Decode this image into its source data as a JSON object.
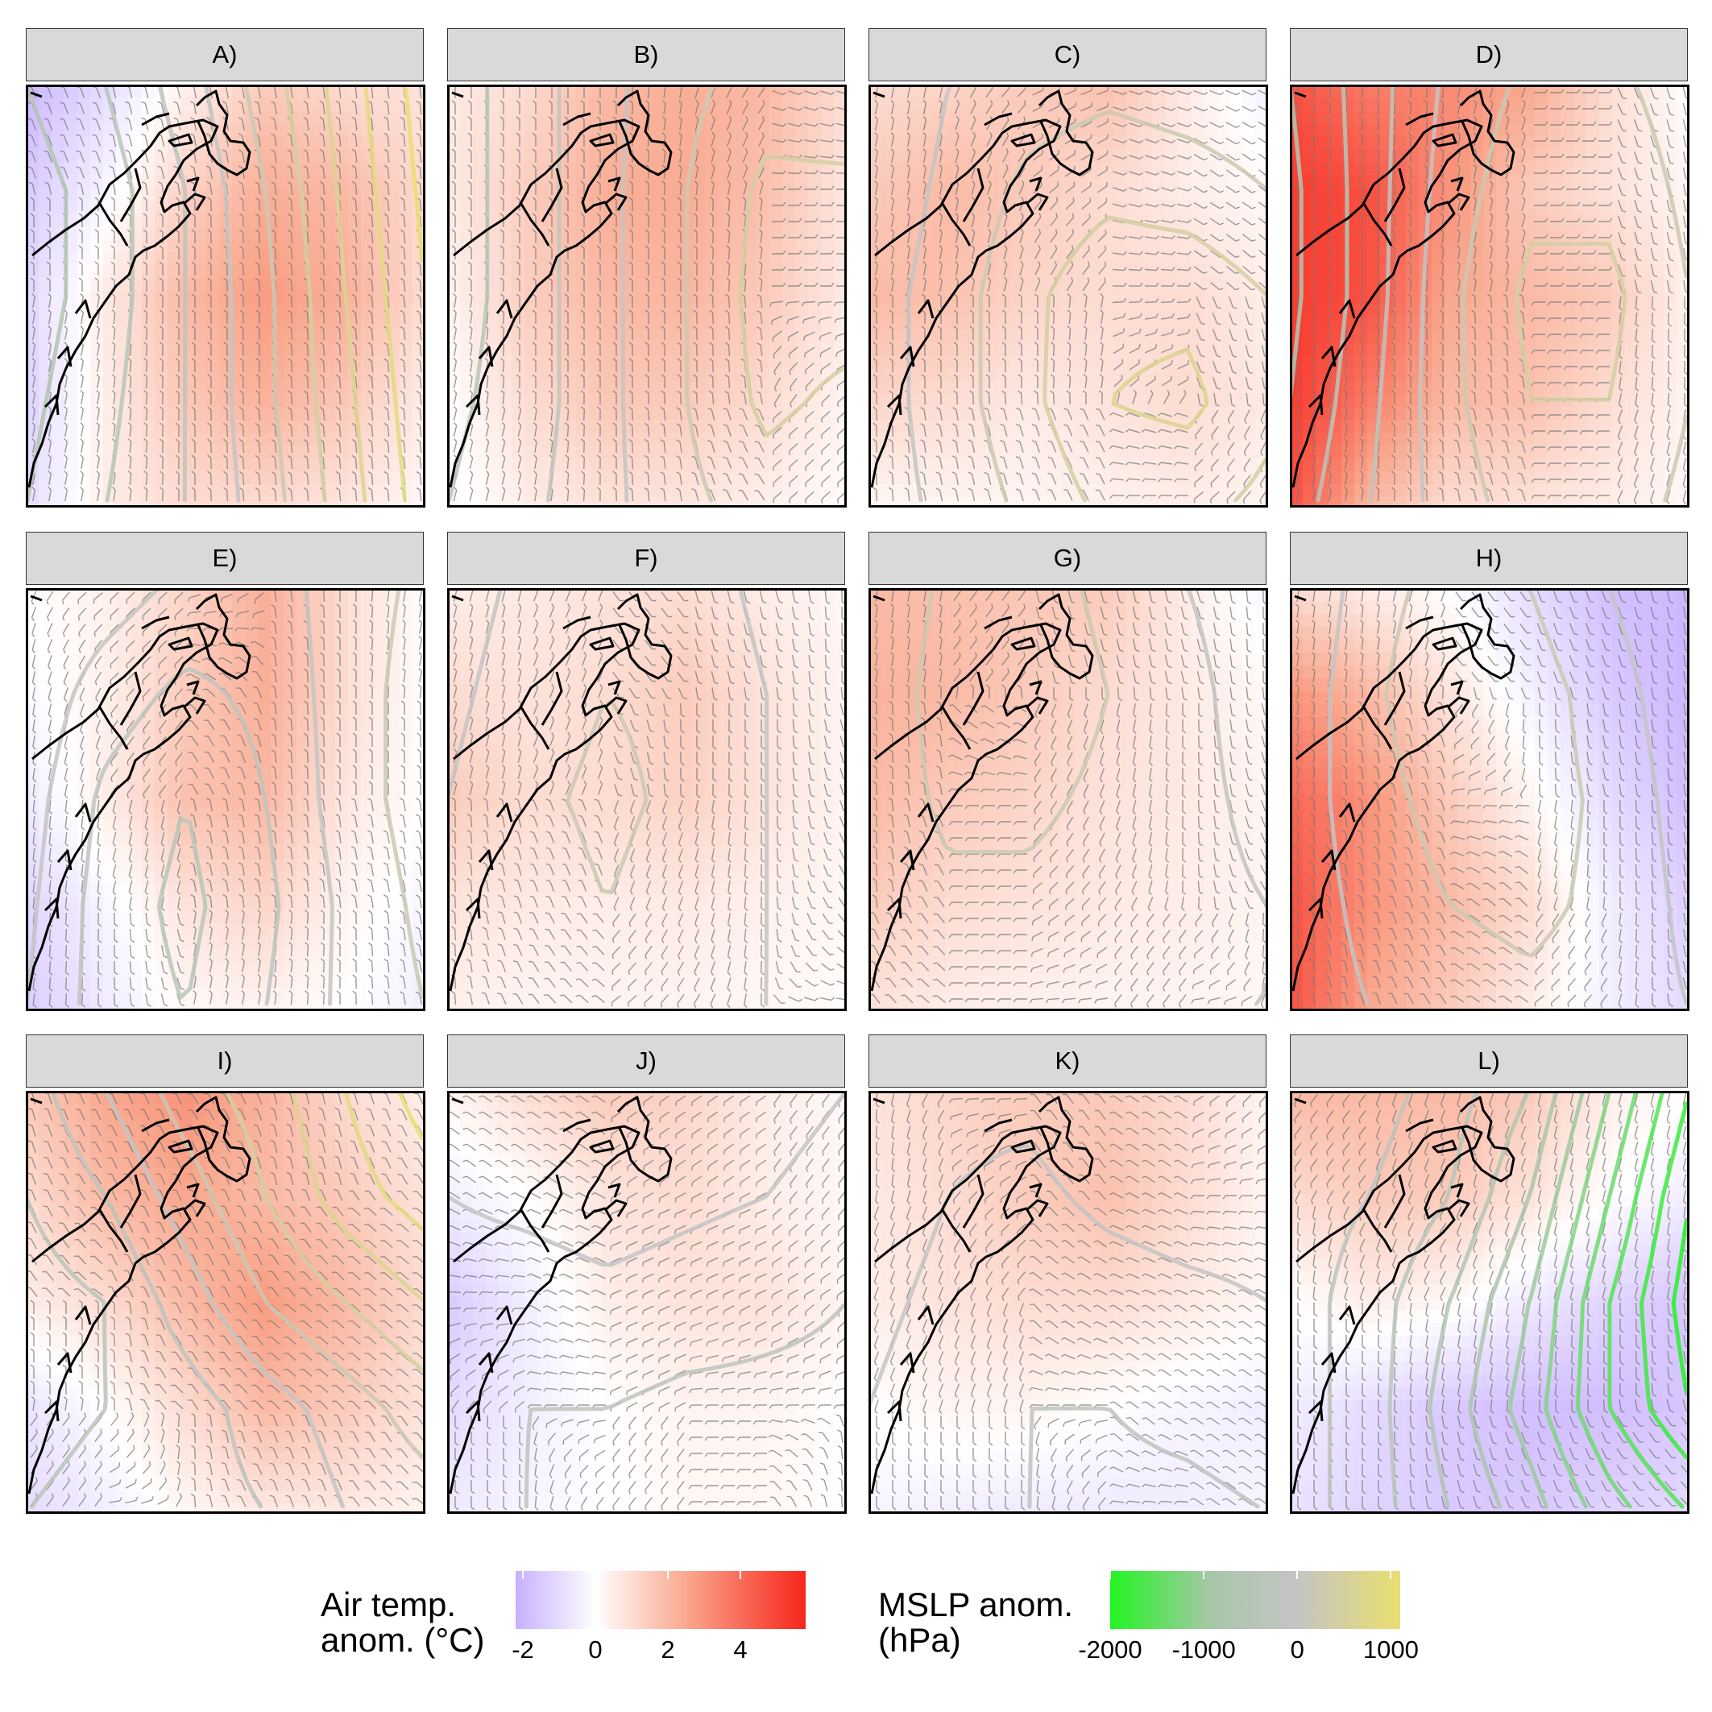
{
  "panels": [
    {
      "label": "A)",
      "temp": [
        [
          -2.0,
          -1.0,
          0.4,
          1.5,
          1.0,
          0.8
        ],
        [
          -1.5,
          -0.3,
          1.3,
          2.3,
          2.0,
          1.0
        ],
        [
          -1.2,
          0.6,
          2.0,
          2.8,
          2.3,
          1.0
        ],
        [
          -1.3,
          0.5,
          1.6,
          2.2,
          1.6,
          0.5
        ],
        [
          -1.0,
          0.5,
          1.0,
          1.0,
          0.7,
          0.2
        ]
      ],
      "mslp": [
        [
          -600,
          -400,
          -100,
          300,
          700,
          1100
        ],
        [
          -700,
          -500,
          -200,
          200,
          650,
          1050
        ],
        [
          -700,
          -500,
          -200,
          150,
          600,
          1000
        ],
        [
          -650,
          -450,
          -200,
          150,
          550,
          950
        ],
        [
          -600,
          -400,
          -200,
          100,
          500,
          900
        ]
      ]
    },
    {
      "label": "B)",
      "temp": [
        [
          0.6,
          1.0,
          2.0,
          2.3,
          2.0,
          1.0
        ],
        [
          0.6,
          1.4,
          2.3,
          2.4,
          1.8,
          0.7
        ],
        [
          0.3,
          1.4,
          2.0,
          2.1,
          1.5,
          0.6
        ],
        [
          0.0,
          1.0,
          1.6,
          1.5,
          1.0,
          0.3
        ],
        [
          -0.2,
          0.5,
          0.8,
          0.7,
          0.4,
          0.1
        ]
      ],
      "mslp": [
        [
          -500,
          -300,
          -50,
          150,
          300,
          250
        ],
        [
          -500,
          -300,
          -50,
          200,
          450,
          450
        ],
        [
          -500,
          -300,
          -50,
          200,
          500,
          500
        ],
        [
          -450,
          -300,
          -50,
          200,
          450,
          350
        ],
        [
          -400,
          -250,
          -50,
          150,
          300,
          200
        ]
      ]
    },
    {
      "label": "C)",
      "temp": [
        [
          1.0,
          1.2,
          1.5,
          1.8,
          0.6,
          -0.5
        ],
        [
          1.5,
          2.0,
          1.5,
          1.0,
          0.5,
          0.2
        ],
        [
          2.0,
          1.8,
          1.2,
          1.0,
          1.0,
          0.5
        ],
        [
          1.2,
          1.0,
          0.6,
          0.8,
          1.0,
          0.6
        ],
        [
          0.2,
          0.3,
          0.3,
          0.4,
          0.5,
          0.3
        ]
      ],
      "mslp": [
        [
          -200,
          0,
          100,
          150,
          100,
          50
        ],
        [
          -150,
          50,
          250,
          350,
          300,
          200
        ],
        [
          -100,
          100,
          350,
          550,
          550,
          400
        ],
        [
          -100,
          100,
          350,
          600,
          650,
          450
        ],
        [
          -100,
          50,
          250,
          450,
          450,
          350
        ]
      ]
    },
    {
      "label": "D)",
      "temp": [
        [
          4.5,
          3.5,
          3.2,
          2.5,
          1.0,
          0.0
        ],
        [
          5.0,
          4.5,
          3.0,
          1.5,
          0.8,
          0.3
        ],
        [
          5.0,
          4.5,
          2.5,
          2.0,
          1.5,
          0.4
        ],
        [
          5.0,
          3.5,
          2.0,
          1.8,
          1.0,
          0.3
        ],
        [
          4.5,
          2.0,
          1.0,
          0.8,
          0.5,
          0.2
        ]
      ],
      "mslp": [
        [
          -600,
          -300,
          50,
          250,
          250,
          100
        ],
        [
          -650,
          -300,
          100,
          350,
          350,
          150
        ],
        [
          -650,
          -300,
          150,
          450,
          450,
          200
        ],
        [
          -600,
          -250,
          150,
          400,
          400,
          200
        ],
        [
          -500,
          -200,
          100,
          300,
          300,
          150
        ]
      ]
    },
    {
      "label": "E)",
      "temp": [
        [
          0.0,
          0.4,
          1.2,
          2.3,
          1.0,
          0.0
        ],
        [
          -0.2,
          0.4,
          1.5,
          2.3,
          1.0,
          0.0
        ],
        [
          -0.6,
          0.5,
          1.8,
          2.0,
          0.7,
          0.0
        ],
        [
          -1.2,
          -0.3,
          0.8,
          1.2,
          0.3,
          -0.3
        ],
        [
          -1.4,
          -0.6,
          0.2,
          0.3,
          0.0,
          -0.5
        ]
      ],
      "mslp": [
        [
          200,
          100,
          -50,
          -100,
          100,
          250
        ],
        [
          150,
          -100,
          -250,
          -150,
          100,
          300
        ],
        [
          100,
          -250,
          -400,
          -200,
          100,
          300
        ],
        [
          50,
          -300,
          -450,
          -250,
          50,
          250
        ],
        [
          0,
          -300,
          -400,
          -200,
          50,
          200
        ]
      ]
    },
    {
      "label": "F)",
      "temp": [
        [
          0.5,
          0.6,
          0.8,
          1.0,
          0.5,
          0.2
        ],
        [
          1.0,
          0.8,
          1.0,
          1.5,
          0.8,
          0.3
        ],
        [
          1.5,
          1.0,
          1.0,
          1.3,
          0.8,
          0.3
        ],
        [
          0.8,
          0.6,
          0.5,
          0.6,
          0.4,
          0.2
        ],
        [
          0.4,
          0.3,
          0.3,
          0.3,
          0.2,
          0.1
        ]
      ],
      "mslp": [
        [
          -100,
          50,
          150,
          100,
          -50,
          -150
        ],
        [
          -50,
          100,
          200,
          150,
          0,
          -150
        ],
        [
          0,
          150,
          250,
          150,
          0,
          -100
        ],
        [
          0,
          100,
          200,
          100,
          0,
          -50
        ],
        [
          0,
          50,
          100,
          50,
          0,
          0
        ]
      ]
    },
    {
      "label": "G)",
      "temp": [
        [
          2.0,
          1.8,
          1.6,
          1.5,
          0.5,
          -0.3
        ],
        [
          2.2,
          2.0,
          1.5,
          1.0,
          0.6,
          0.2
        ],
        [
          2.0,
          1.5,
          1.2,
          0.8,
          0.6,
          0.3
        ],
        [
          1.5,
          1.0,
          0.8,
          0.6,
          0.5,
          0.3
        ],
        [
          0.8,
          0.5,
          0.4,
          0.3,
          0.3,
          0.2
        ]
      ],
      "mslp": [
        [
          0,
          250,
          300,
          150,
          0,
          -100
        ],
        [
          50,
          300,
          350,
          200,
          50,
          -100
        ],
        [
          50,
          250,
          250,
          150,
          50,
          -50
        ],
        [
          50,
          150,
          150,
          100,
          50,
          0
        ],
        [
          0,
          50,
          50,
          50,
          0,
          0
        ]
      ]
    },
    {
      "label": "H)",
      "temp": [
        [
          1.0,
          0.5,
          0.0,
          -1.0,
          -1.8,
          -2.0
        ],
        [
          3.0,
          2.0,
          0.8,
          -0.4,
          -1.5,
          -2.0
        ],
        [
          4.0,
          3.0,
          1.5,
          0.3,
          -1.0,
          -1.8
        ],
        [
          4.5,
          3.0,
          2.0,
          1.0,
          -0.5,
          -1.3
        ],
        [
          4.5,
          2.5,
          1.5,
          0.5,
          -0.5,
          -1.0
        ]
      ],
      "mslp": [
        [
          -200,
          100,
          300,
          200,
          0,
          -200
        ],
        [
          -150,
          150,
          400,
          300,
          100,
          -150
        ],
        [
          -100,
          100,
          300,
          300,
          150,
          -100
        ],
        [
          -100,
          50,
          200,
          250,
          150,
          -50
        ],
        [
          -100,
          0,
          100,
          150,
          100,
          0
        ]
      ]
    },
    {
      "label": "I)",
      "temp": [
        [
          1.5,
          2.5,
          3.0,
          2.2,
          1.0,
          0.5
        ],
        [
          1.0,
          2.0,
          2.5,
          2.0,
          1.5,
          0.8
        ],
        [
          0.5,
          1.0,
          2.0,
          2.8,
          2.0,
          1.0
        ],
        [
          -0.8,
          0.0,
          1.0,
          2.0,
          1.5,
          0.8
        ],
        [
          -1.0,
          -0.5,
          0.2,
          0.6,
          0.6,
          0.3
        ]
      ],
      "mslp": [
        [
          -300,
          0,
          300,
          500,
          800,
          1100
        ],
        [
          -400,
          -200,
          100,
          400,
          700,
          900
        ],
        [
          -500,
          -400,
          -100,
          200,
          400,
          600
        ],
        [
          -500,
          -400,
          -300,
          -100,
          100,
          300
        ],
        [
          -400,
          -300,
          -300,
          -200,
          0,
          100
        ]
      ]
    },
    {
      "label": "J)",
      "temp": [
        [
          0.3,
          1.0,
          1.5,
          1.2,
          0.5,
          0.2
        ],
        [
          -0.5,
          0.0,
          0.8,
          1.0,
          0.5,
          0.2
        ],
        [
          -1.5,
          -0.5,
          0.5,
          0.8,
          0.8,
          0.3
        ],
        [
          -1.0,
          -0.5,
          0.0,
          0.3,
          0.3,
          0.0
        ],
        [
          -0.6,
          -0.3,
          0.0,
          0.2,
          0.2,
          0.0
        ]
      ],
      "mslp": [
        [
          100,
          150,
          200,
          150,
          100,
          0
        ],
        [
          0,
          50,
          100,
          50,
          0,
          -100
        ],
        [
          -100,
          -100,
          -50,
          -100,
          -150,
          -200
        ],
        [
          -150,
          -200,
          -200,
          -250,
          -250,
          -250
        ],
        [
          -150,
          -200,
          -250,
          -300,
          -300,
          -250
        ]
      ]
    },
    {
      "label": "K)",
      "temp": [
        [
          0.8,
          1.2,
          1.5,
          1.5,
          1.0,
          0.3
        ],
        [
          0.6,
          1.0,
          1.5,
          1.8,
          1.0,
          0.3
        ],
        [
          0.5,
          0.8,
          1.0,
          1.0,
          0.6,
          0.2
        ],
        [
          0.0,
          0.3,
          0.3,
          0.0,
          -0.3,
          -0.5
        ],
        [
          -0.3,
          -0.5,
          -0.6,
          -0.6,
          -0.5,
          -0.3
        ]
      ],
      "mslp": [
        [
          100,
          50,
          50,
          150,
          200,
          150
        ],
        [
          100,
          0,
          -50,
          50,
          100,
          100
        ],
        [
          50,
          -50,
          -150,
          -100,
          -50,
          0
        ],
        [
          0,
          -100,
          -200,
          -200,
          -150,
          -100
        ],
        [
          0,
          -100,
          -200,
          -250,
          -250,
          -200
        ]
      ]
    },
    {
      "label": "L)",
      "temp": [
        [
          2.0,
          2.0,
          2.0,
          1.5,
          0.5,
          0.0
        ],
        [
          1.0,
          1.5,
          1.5,
          0.8,
          0.0,
          -0.5
        ],
        [
          0.0,
          0.5,
          0.2,
          -0.6,
          -1.2,
          -1.6
        ],
        [
          -0.5,
          -1.0,
          -1.5,
          -1.8,
          -1.8,
          -1.6
        ],
        [
          -0.8,
          -1.2,
          -1.5,
          -1.5,
          -1.2,
          -1.0
        ]
      ],
      "mslp": [
        [
          0,
          -100,
          -300,
          -600,
          -1200,
          -1800
        ],
        [
          -100,
          -200,
          -400,
          -800,
          -1400,
          -2000
        ],
        [
          -100,
          -300,
          -600,
          -1000,
          -1600,
          -2100
        ],
        [
          -100,
          -300,
          -700,
          -1100,
          -1600,
          -2000
        ],
        [
          -100,
          -300,
          -600,
          -900,
          -1300,
          -1600
        ]
      ]
    }
  ],
  "legend": {
    "temp_title": "Air temp.\nanom. (°C)",
    "temp_ticks": [
      "-2",
      "0",
      "2",
      "4"
    ],
    "temp_colors": [
      "#c7b0ff",
      "#ffffff",
      "#f9a88e",
      "#f8251b"
    ],
    "mslp_title": "MSLP anom.\n(hPa)",
    "mslp_ticks": [
      "-2000",
      "-1000",
      "0",
      "1000"
    ],
    "mslp_colors": [
      "#22f522",
      "#a9c6a9",
      "#c4c4c4",
      "#e9df70"
    ]
  }
}
